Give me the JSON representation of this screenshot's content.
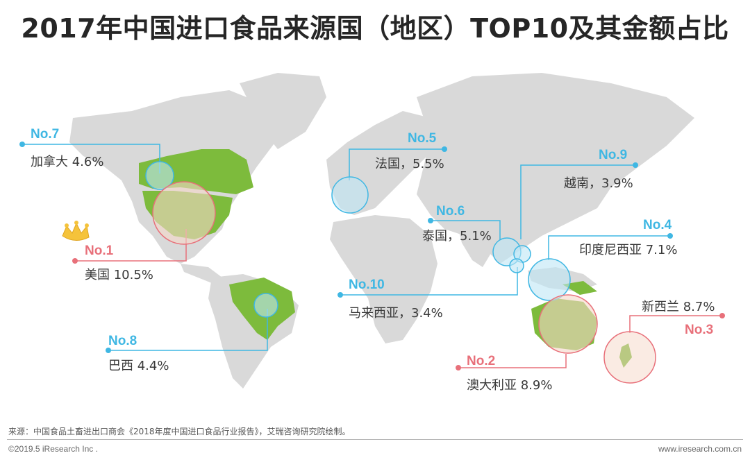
{
  "title": "2017年中国进口食品来源国（地区）TOP10及其金额占比",
  "chart_data": {
    "type": "map",
    "title": "2017年中国进口食品来源国（地区）TOP10及其金额占比",
    "unit": "%",
    "entries": [
      {
        "rank_label": "No.1",
        "rank": 1,
        "name": "美国",
        "value": 10.5,
        "value_label": "美国  10.5%"
      },
      {
        "rank_label": "No.2",
        "rank": 2,
        "name": "澳大利亚",
        "value": 8.9,
        "value_label": "澳大利亚  8.9%"
      },
      {
        "rank_label": "No.3",
        "rank": 3,
        "name": "新西兰",
        "value": 8.7,
        "value_label": "新西兰  8.7%"
      },
      {
        "rank_label": "No.4",
        "rank": 4,
        "name": "印度尼西亚",
        "value": 7.1,
        "value_label": "印度尼西亚  7.1%"
      },
      {
        "rank_label": "No.5",
        "rank": 5,
        "name": "法国",
        "value": 5.5,
        "value_label": "法国，5.5%"
      },
      {
        "rank_label": "No.6",
        "rank": 6,
        "name": "泰国",
        "value": 5.1,
        "value_label": "泰国，5.1%"
      },
      {
        "rank_label": "No.7",
        "rank": 7,
        "name": "加拿大",
        "value": 4.6,
        "value_label": "加拿大  4.6%"
      },
      {
        "rank_label": "No.8",
        "rank": 8,
        "name": "巴西",
        "value": 4.4,
        "value_label": "巴西  4.4%"
      },
      {
        "rank_label": "No.9",
        "rank": 9,
        "name": "越南",
        "value": 3.9,
        "value_label": "越南，3.9%"
      },
      {
        "rank_label": "No.10",
        "rank": 10,
        "name": "马来西亚",
        "value": 3.4,
        "value_label": "马来西亚，3.4%"
      }
    ],
    "colors": {
      "top3": "#e8707a",
      "others": "#3fb7e3",
      "highlight_country": "#7dbb3c",
      "land": "#d9d9d9"
    }
  },
  "footer": {
    "source": "来源：中国食品土畜进出口商会《2018年度中国进口食品行业报告》，艾瑞咨询研究院绘制。",
    "copyright": "©2019.5 iResearch Inc .",
    "website": "www.iresearch.com.cn"
  }
}
